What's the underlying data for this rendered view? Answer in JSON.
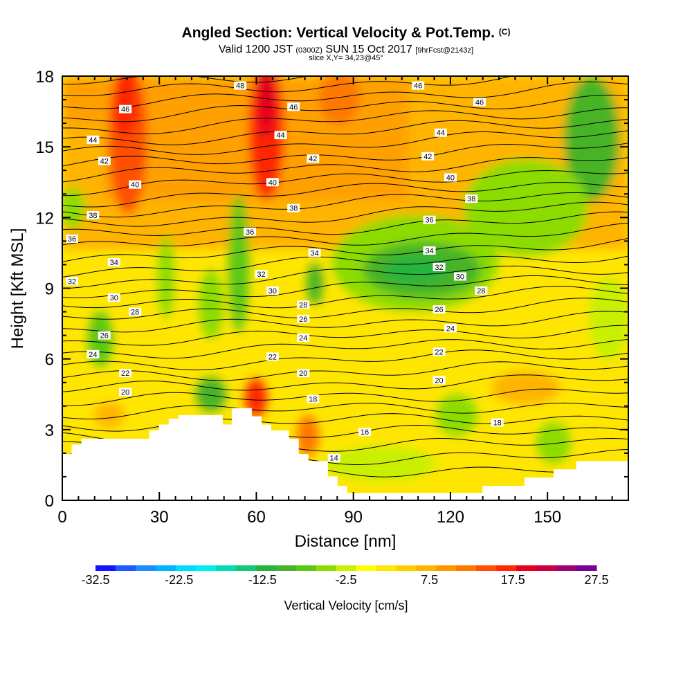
{
  "header": {
    "title": "Angled Section: Vertical Velocity & Pot.Temp.",
    "title_units": "(C)",
    "valid_prefix": "Valid 1200 JST",
    "valid_utc": "(0300Z)",
    "valid_date": "SUN 15 Oct 2017",
    "forecast_tag": "[9hrFcst@2143z]",
    "slice": "slice X,Y= 34,23@45°"
  },
  "chart_data": {
    "type": "heatmap",
    "xlabel": "Distance [nm]",
    "ylabel": "Height [Kft MSL]",
    "xlim": [
      0,
      175
    ],
    "ylim": [
      0,
      18
    ],
    "x_ticks": [
      0,
      30,
      60,
      90,
      120,
      150
    ],
    "y_ticks": [
      0,
      3,
      6,
      9,
      12,
      15,
      18
    ],
    "x_tick_labels": [
      "0",
      "30",
      "60",
      "90",
      "120",
      "150"
    ],
    "y_tick_labels": [
      "0",
      "3",
      "6",
      "9",
      "12",
      "15",
      "18"
    ],
    "colorbar": {
      "label": "Vertical Velocity [cm/s]",
      "min": -32.5,
      "max": 27.5,
      "step": 2.5,
      "tick_labels": [
        "-32.5",
        "-22.5",
        "-12.5",
        "-2.5",
        "7.5",
        "17.5",
        "27.5"
      ],
      "colors": [
        "#1414ff",
        "#1e5aff",
        "#1e8cff",
        "#00b4ff",
        "#00dcff",
        "#00f0f0",
        "#00dcb4",
        "#14c878",
        "#28b43c",
        "#46b428",
        "#5ac814",
        "#8cdc00",
        "#c8f000",
        "#ffff00",
        "#ffe600",
        "#ffcd00",
        "#ffb400",
        "#ff9600",
        "#ff7800",
        "#ff5000",
        "#ff2800",
        "#e6001e",
        "#c80046",
        "#a00078",
        "#780096"
      ]
    },
    "isentropes": {
      "quantity": "Pot.Temp. (C)",
      "levels": [
        14,
        16,
        18,
        20,
        22,
        24,
        26,
        28,
        30,
        32,
        34,
        36,
        38,
        40,
        42,
        44,
        46,
        48
      ],
      "labels": [
        {
          "text": "48",
          "x": 55,
          "y": 17.6
        },
        {
          "text": "46",
          "x": 110,
          "y": 17.6
        },
        {
          "text": "46",
          "x": 19.5,
          "y": 16.6
        },
        {
          "text": "46",
          "x": 71.5,
          "y": 16.7
        },
        {
          "text": "46",
          "x": 129,
          "y": 16.9
        },
        {
          "text": "44",
          "x": 9.5,
          "y": 15.3
        },
        {
          "text": "44",
          "x": 67.5,
          "y": 15.5
        },
        {
          "text": "44",
          "x": 117,
          "y": 15.6
        },
        {
          "text": "42",
          "x": 13,
          "y": 14.4
        },
        {
          "text": "42",
          "x": 77.5,
          "y": 14.5
        },
        {
          "text": "42",
          "x": 113,
          "y": 14.6
        },
        {
          "text": "40",
          "x": 22.5,
          "y": 13.4
        },
        {
          "text": "40",
          "x": 65,
          "y": 13.5
        },
        {
          "text": "40",
          "x": 120,
          "y": 13.7
        },
        {
          "text": "38",
          "x": 9.5,
          "y": 12.1
        },
        {
          "text": "38",
          "x": 71.5,
          "y": 12.4
        },
        {
          "text": "38",
          "x": 126.5,
          "y": 12.8
        },
        {
          "text": "36",
          "x": 3,
          "y": 11.1
        },
        {
          "text": "36",
          "x": 58,
          "y": 11.4
        },
        {
          "text": "36",
          "x": 113.5,
          "y": 11.9
        },
        {
          "text": "34",
          "x": 16,
          "y": 10.1
        },
        {
          "text": "34",
          "x": 78,
          "y": 10.5
        },
        {
          "text": "34",
          "x": 113.5,
          "y": 10.6
        },
        {
          "text": "32",
          "x": 3,
          "y": 9.3
        },
        {
          "text": "32",
          "x": 61.5,
          "y": 9.6
        },
        {
          "text": "32",
          "x": 116.5,
          "y": 9.9
        },
        {
          "text": "30",
          "x": 16,
          "y": 8.6
        },
        {
          "text": "30",
          "x": 65,
          "y": 8.9
        },
        {
          "text": "30",
          "x": 123,
          "y": 9.5
        },
        {
          "text": "28",
          "x": 22.5,
          "y": 8.0
        },
        {
          "text": "28",
          "x": 74.5,
          "y": 8.3
        },
        {
          "text": "28",
          "x": 129.5,
          "y": 8.9
        },
        {
          "text": "26",
          "x": 13,
          "y": 7.0
        },
        {
          "text": "26",
          "x": 74.5,
          "y": 7.7
        },
        {
          "text": "26",
          "x": 116.5,
          "y": 8.1
        },
        {
          "text": "24",
          "x": 9.5,
          "y": 6.2
        },
        {
          "text": "24",
          "x": 74.5,
          "y": 6.9
        },
        {
          "text": "24",
          "x": 120,
          "y": 7.3
        },
        {
          "text": "22",
          "x": 19.5,
          "y": 5.4
        },
        {
          "text": "22",
          "x": 65,
          "y": 6.1
        },
        {
          "text": "22",
          "x": 116.5,
          "y": 6.3
        },
        {
          "text": "20",
          "x": 19.5,
          "y": 4.6
        },
        {
          "text": "20",
          "x": 74.5,
          "y": 5.4
        },
        {
          "text": "20",
          "x": 116.5,
          "y": 5.1
        },
        {
          "text": "18",
          "x": 77.5,
          "y": 4.3
        },
        {
          "text": "18",
          "x": 134.5,
          "y": 3.3
        },
        {
          "text": "16",
          "x": 93.5,
          "y": 2.9
        },
        {
          "text": "14",
          "x": 84,
          "y": 1.8
        }
      ]
    },
    "terrain_kft": [
      [
        0,
        1.95
      ],
      [
        3,
        1.95
      ],
      [
        3,
        2.35
      ],
      [
        6,
        2.35
      ],
      [
        6,
        2.6
      ],
      [
        27,
        2.6
      ],
      [
        27,
        2.95
      ],
      [
        30,
        2.95
      ],
      [
        30,
        3.2
      ],
      [
        33,
        3.2
      ],
      [
        33,
        3.45
      ],
      [
        36,
        3.45
      ],
      [
        36,
        3.6
      ],
      [
        49.5,
        3.6
      ],
      [
        49.5,
        3.2
      ],
      [
        52.5,
        3.2
      ],
      [
        52.5,
        3.9
      ],
      [
        58.5,
        3.9
      ],
      [
        58.5,
        3.55
      ],
      [
        61.5,
        3.55
      ],
      [
        61.5,
        3.2
      ],
      [
        64.5,
        3.2
      ],
      [
        64.5,
        2.95
      ],
      [
        70,
        2.95
      ],
      [
        70,
        2.6
      ],
      [
        73,
        2.6
      ],
      [
        73,
        1.95
      ],
      [
        76,
        1.95
      ],
      [
        76,
        1.65
      ],
      [
        82,
        1.65
      ],
      [
        82,
        1.0
      ],
      [
        85,
        1.0
      ],
      [
        85,
        0.6
      ],
      [
        88,
        0.6
      ],
      [
        88,
        0.3
      ],
      [
        130,
        0.3
      ],
      [
        130,
        0.6
      ],
      [
        143,
        0.6
      ],
      [
        143,
        0.95
      ],
      [
        152,
        0.95
      ],
      [
        152,
        1.3
      ],
      [
        159,
        1.3
      ],
      [
        159,
        1.65
      ],
      [
        175,
        1.65
      ]
    ]
  }
}
